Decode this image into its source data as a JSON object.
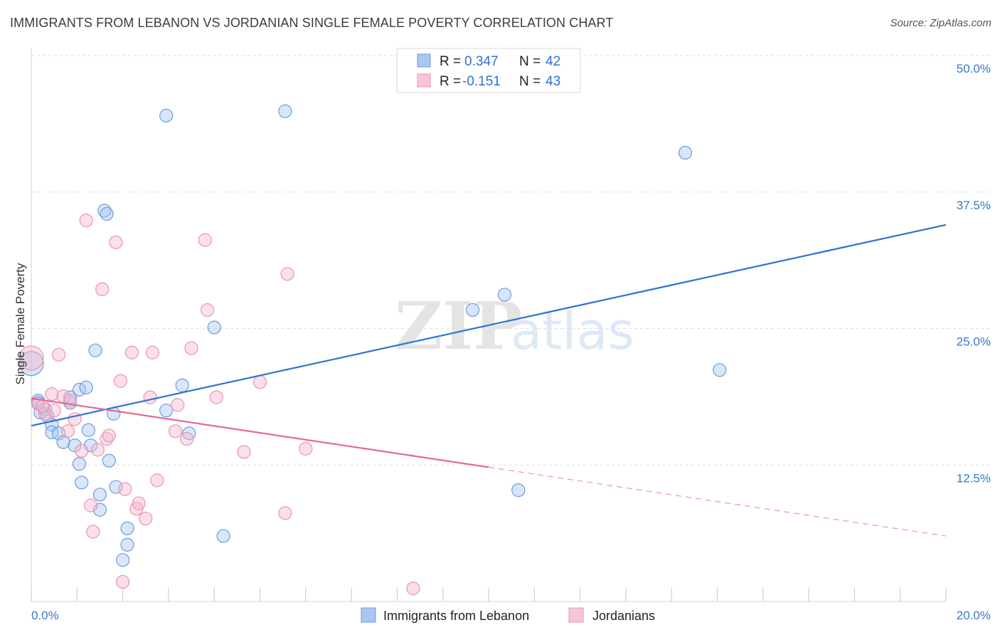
{
  "title": "IMMIGRANTS FROM LEBANON VS JORDANIAN SINGLE FEMALE POVERTY CORRELATION CHART",
  "source": "Source: ZipAtlas.com",
  "watermark": {
    "zip": "ZIP",
    "atlas": "atlas"
  },
  "colors": {
    "blue_fill": "#a9c7f0",
    "blue_stroke": "#6b9be0",
    "blue_line": "#2f74d0",
    "pink_fill": "#f6b9cf",
    "pink_stroke": "#e994b2",
    "pink_line": "#e46893",
    "tick": "#3a78c9",
    "grid": "#dddddd"
  },
  "legend": [
    {
      "r_label": "R =",
      "r_value": "0.347",
      "n_label": "N =",
      "n_value": "42"
    },
    {
      "r_label": "R =",
      "r_value": "-0.151",
      "n_label": "N =",
      "n_value": "43"
    }
  ],
  "chart_data": {
    "type": "scatter",
    "title": "IMMIGRANTS FROM LEBANON VS JORDANIAN SINGLE FEMALE POVERTY CORRELATION CHART",
    "xlabel": "",
    "ylabel": "Single Female Poverty",
    "xlim": [
      0,
      20
    ],
    "ylim": [
      0,
      50
    ],
    "x_tick_labels": [
      "0.0%",
      "20.0%"
    ],
    "y_ticks": [
      12.5,
      25.0,
      37.5,
      50.0
    ],
    "y_tick_labels": [
      "12.5%",
      "25.0%",
      "37.5%",
      "50.0%"
    ],
    "grid": true,
    "series": [
      {
        "name": "Immigrants from Lebanon",
        "color": "blue",
        "trend": {
          "x": [
            0,
            20
          ],
          "y": [
            16.1,
            34.5
          ],
          "dashed_from": null
        },
        "points": [
          [
            0.0,
            21.8,
            22
          ],
          [
            0.15,
            18.4,
            10
          ],
          [
            0.2,
            17.3,
            10
          ],
          [
            0.3,
            17.6,
            10
          ],
          [
            0.45,
            16.2,
            10
          ],
          [
            0.45,
            15.5,
            10
          ],
          [
            0.6,
            15.4,
            10
          ],
          [
            0.7,
            14.6,
            10
          ],
          [
            0.85,
            18.2,
            10
          ],
          [
            0.85,
            18.7,
            10
          ],
          [
            0.95,
            14.3,
            10
          ],
          [
            1.05,
            19.4,
            10
          ],
          [
            1.05,
            12.6,
            10
          ],
          [
            1.1,
            10.9,
            10
          ],
          [
            1.2,
            19.6,
            10
          ],
          [
            1.25,
            15.7,
            10
          ],
          [
            1.3,
            14.3,
            10
          ],
          [
            1.4,
            23.0,
            10
          ],
          [
            1.5,
            8.4,
            10
          ],
          [
            1.5,
            9.8,
            10
          ],
          [
            1.6,
            35.8,
            10
          ],
          [
            1.65,
            35.5,
            10
          ],
          [
            1.7,
            12.9,
            10
          ],
          [
            1.8,
            17.2,
            10
          ],
          [
            1.85,
            10.5,
            10
          ],
          [
            2.0,
            3.8,
            10
          ],
          [
            2.1,
            5.2,
            10
          ],
          [
            2.1,
            6.7,
            10
          ],
          [
            2.95,
            44.5,
            10
          ],
          [
            2.95,
            17.5,
            10
          ],
          [
            3.3,
            19.8,
            10
          ],
          [
            3.45,
            15.4,
            10
          ],
          [
            4.0,
            25.1,
            10
          ],
          [
            4.2,
            6.0,
            10
          ],
          [
            5.55,
            44.9,
            10
          ],
          [
            9.65,
            26.7,
            10
          ],
          [
            10.35,
            28.1,
            10
          ],
          [
            10.65,
            10.2,
            10
          ],
          [
            14.3,
            41.1,
            10
          ],
          [
            15.05,
            21.2,
            10
          ],
          [
            0.15,
            18.2,
            10
          ],
          [
            0.35,
            17.0,
            10
          ]
        ]
      },
      {
        "name": "Jordanians",
        "color": "pink",
        "trend": {
          "x": [
            0,
            20
          ],
          "y": [
            18.6,
            6.0
          ],
          "dashed_from": 10.0
        },
        "points": [
          [
            0.0,
            22.3,
            22
          ],
          [
            0.15,
            18.1,
            10
          ],
          [
            0.3,
            17.2,
            10
          ],
          [
            0.45,
            19.0,
            10
          ],
          [
            0.6,
            22.6,
            10
          ],
          [
            0.7,
            18.8,
            10
          ],
          [
            0.8,
            15.6,
            10
          ],
          [
            0.85,
            18.4,
            10
          ],
          [
            0.95,
            16.7,
            10
          ],
          [
            1.1,
            13.8,
            10
          ],
          [
            1.2,
            34.9,
            10
          ],
          [
            1.3,
            8.8,
            10
          ],
          [
            1.35,
            6.4,
            10
          ],
          [
            1.45,
            13.9,
            10
          ],
          [
            1.55,
            28.6,
            10
          ],
          [
            1.65,
            14.9,
            10
          ],
          [
            1.7,
            15.2,
            10
          ],
          [
            1.85,
            32.9,
            10
          ],
          [
            1.95,
            20.2,
            10
          ],
          [
            2.05,
            10.3,
            10
          ],
          [
            2.0,
            1.8,
            10
          ],
          [
            2.2,
            22.8,
            10
          ],
          [
            2.3,
            8.5,
            10
          ],
          [
            2.35,
            9.0,
            10
          ],
          [
            2.5,
            7.6,
            10
          ],
          [
            2.6,
            18.7,
            10
          ],
          [
            2.65,
            22.8,
            10
          ],
          [
            2.75,
            11.1,
            10
          ],
          [
            3.2,
            18.0,
            10
          ],
          [
            3.15,
            15.6,
            10
          ],
          [
            3.4,
            14.9,
            10
          ],
          [
            3.5,
            23.2,
            10
          ],
          [
            3.8,
            33.1,
            10
          ],
          [
            3.85,
            26.7,
            10
          ],
          [
            4.05,
            18.7,
            10
          ],
          [
            4.65,
            13.7,
            10
          ],
          [
            5.0,
            20.1,
            10
          ],
          [
            5.55,
            8.1,
            10
          ],
          [
            5.6,
            30.0,
            10
          ],
          [
            6.0,
            14.0,
            10
          ],
          [
            8.35,
            1.2,
            10
          ],
          [
            0.25,
            17.9,
            10
          ],
          [
            0.5,
            17.5,
            10
          ]
        ]
      }
    ]
  }
}
